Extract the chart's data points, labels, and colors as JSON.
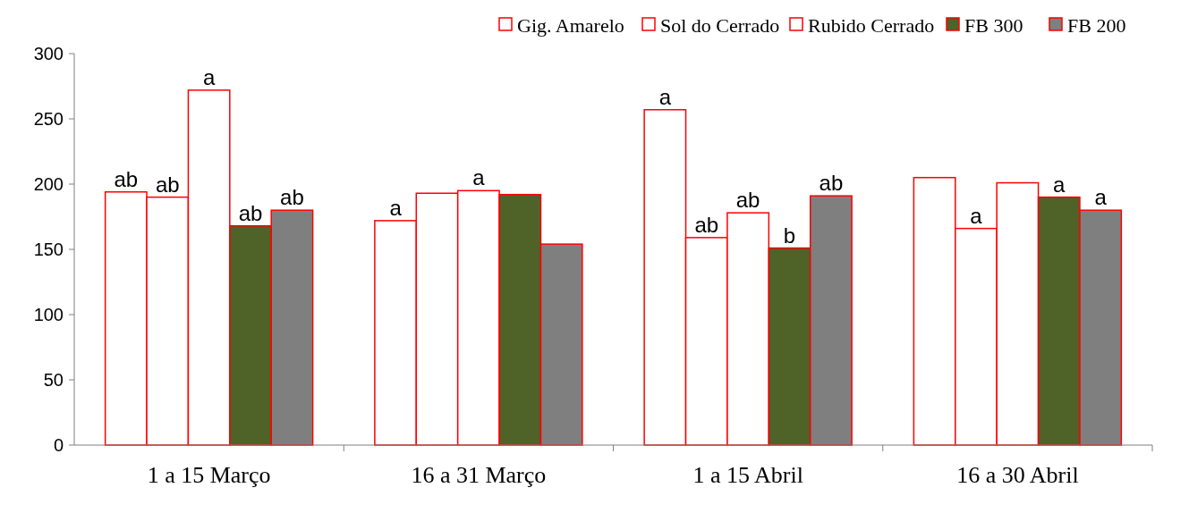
{
  "chart_data": {
    "type": "bar",
    "categories": [
      "1 a 15 Março",
      "16 a 31 Março",
      "1 a 15 Abril",
      "16 a 30 Abril"
    ],
    "series": [
      {
        "name": "Gig. Amarelo",
        "color": "#ffffff",
        "values": [
          194,
          172,
          257,
          205
        ],
        "value_labels": [
          "ab",
          "a",
          "a",
          null
        ]
      },
      {
        "name": "Sol do Cerrado",
        "color": "#ffffff",
        "values": [
          190,
          193,
          159,
          166
        ],
        "value_labels": [
          "ab",
          null,
          "ab",
          "a"
        ]
      },
      {
        "name": "Rubido Cerrado",
        "color": "#ffffff",
        "values": [
          272,
          195,
          178,
          201
        ],
        "value_labels": [
          "a",
          "a",
          "ab",
          null
        ]
      },
      {
        "name": "FB 300",
        "color": "#4f6228",
        "values": [
          168,
          192,
          151,
          190
        ],
        "value_labels": [
          "ab",
          null,
          "b",
          "a"
        ]
      },
      {
        "name": "FB 200",
        "color": "#7f7f7f",
        "values": [
          180,
          154,
          191,
          180
        ],
        "value_labels": [
          "ab",
          null,
          "ab",
          "a"
        ]
      }
    ],
    "ylim": [
      0,
      300
    ],
    "yticks": [
      0,
      50,
      100,
      150,
      200,
      250,
      300
    ],
    "legend": "top",
    "grid": false
  }
}
